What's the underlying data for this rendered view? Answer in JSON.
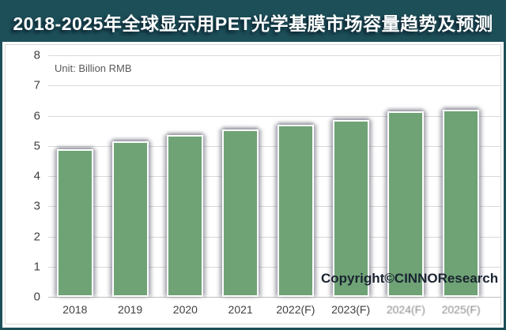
{
  "window": {
    "title": "2018-2025年全球显示用PET光学基膜市场容量趋势及预测"
  },
  "annotations": {
    "unit_label": "Unit: Billion RMB",
    "copyright": "Copyright©CINNOResearch"
  },
  "colors": {
    "title_bar_bg": "#1d4f58",
    "title_text": "#ffffff",
    "bar_fill": "#6fa376",
    "bar_border": "#ffffff",
    "gridline": "#d9d9d9",
    "axis_text": "#404040",
    "unit_text": "#595959",
    "copyright_text": "#1a2430",
    "frame_border": "#1d4f58",
    "background": "#ffffff"
  },
  "chart_data": {
    "type": "bar",
    "title": "2018-2025年全球显示用PET光学基膜市场容量趋势及预测",
    "unit": "Billion RMB",
    "categories": [
      "2018",
      "2019",
      "2020",
      "2021",
      "2022(F)",
      "2023(F)",
      "2024(F)",
      "2025(F)"
    ],
    "values": [
      4.9,
      5.15,
      5.35,
      5.55,
      5.7,
      5.85,
      6.15,
      6.2
    ],
    "xlabel": "",
    "ylabel": "Billion RMB",
    "ylim": [
      0,
      8
    ],
    "yticks": [
      0,
      1,
      2,
      3,
      4,
      5,
      6,
      7,
      8
    ],
    "grid": true,
    "legend": "none",
    "faded_labels": [
      "2024(F)",
      "2025(F)"
    ]
  }
}
